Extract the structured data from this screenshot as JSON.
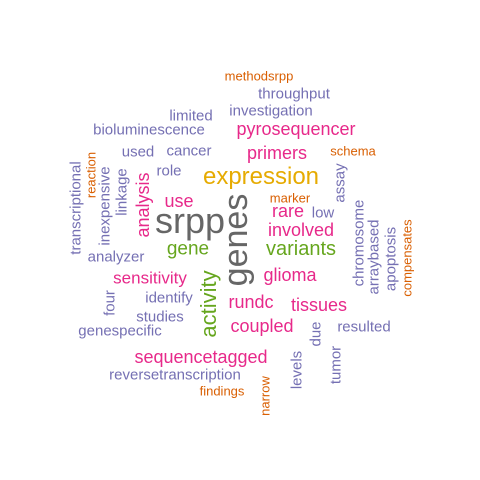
{
  "colors": {
    "slate": "#7570B3",
    "magenta": "#E7298A",
    "orange": "#D95F02",
    "gold": "#E6AB02",
    "green": "#66A61E",
    "gray": "#666666"
  },
  "words": [
    {
      "text": "genes",
      "color": "gray",
      "vertical": true
    },
    {
      "text": "srpp",
      "color": "gray",
      "vertical": false
    },
    {
      "text": "expression",
      "color": "gold",
      "vertical": false
    },
    {
      "text": "gene",
      "color": "green",
      "vertical": false
    },
    {
      "text": "variants",
      "color": "green",
      "vertical": false
    },
    {
      "text": "activity",
      "color": "green",
      "vertical": true
    },
    {
      "text": "analysis",
      "color": "magenta",
      "vertical": true
    },
    {
      "text": "pyrosequencer",
      "color": "magenta",
      "vertical": false
    },
    {
      "text": "primers",
      "color": "magenta",
      "vertical": false
    },
    {
      "text": "rare",
      "color": "magenta",
      "vertical": false
    },
    {
      "text": "involved",
      "color": "magenta",
      "vertical": false
    },
    {
      "text": "use",
      "color": "magenta",
      "vertical": false
    },
    {
      "text": "sensitivity",
      "color": "magenta",
      "vertical": false
    },
    {
      "text": "glioma",
      "color": "magenta",
      "vertical": false
    },
    {
      "text": "rundc",
      "color": "magenta",
      "vertical": false
    },
    {
      "text": "tissues",
      "color": "magenta",
      "vertical": false
    },
    {
      "text": "coupled",
      "color": "magenta",
      "vertical": false
    },
    {
      "text": "sequencetagged",
      "color": "magenta",
      "vertical": false
    },
    {
      "text": "methodsrpp",
      "color": "orange",
      "vertical": false
    },
    {
      "text": "schema",
      "color": "orange",
      "vertical": false
    },
    {
      "text": "marker",
      "color": "orange",
      "vertical": false
    },
    {
      "text": "reaction",
      "color": "orange",
      "vertical": true
    },
    {
      "text": "compensates",
      "color": "orange",
      "vertical": true
    },
    {
      "text": "findings",
      "color": "orange",
      "vertical": false
    },
    {
      "text": "narrow",
      "color": "orange",
      "vertical": true
    },
    {
      "text": "throughput",
      "color": "slate",
      "vertical": false
    },
    {
      "text": "limited",
      "color": "slate",
      "vertical": false
    },
    {
      "text": "investigation",
      "color": "slate",
      "vertical": false
    },
    {
      "text": "bioluminescence",
      "color": "slate",
      "vertical": false
    },
    {
      "text": "used",
      "color": "slate",
      "vertical": false
    },
    {
      "text": "cancer",
      "color": "slate",
      "vertical": false
    },
    {
      "text": "role",
      "color": "slate",
      "vertical": false
    },
    {
      "text": "transcriptional",
      "color": "slate",
      "vertical": true
    },
    {
      "text": "inexpensive",
      "color": "slate",
      "vertical": true
    },
    {
      "text": "linkage",
      "color": "slate",
      "vertical": true
    },
    {
      "text": "assay",
      "color": "slate",
      "vertical": true
    },
    {
      "text": "low",
      "color": "slate",
      "vertical": false
    },
    {
      "text": "chromosome",
      "color": "slate",
      "vertical": true
    },
    {
      "text": "arraybased",
      "color": "slate",
      "vertical": true
    },
    {
      "text": "apoptosis",
      "color": "slate",
      "vertical": true
    },
    {
      "text": "analyzer",
      "color": "slate",
      "vertical": false
    },
    {
      "text": "identify",
      "color": "slate",
      "vertical": false
    },
    {
      "text": "four",
      "color": "slate",
      "vertical": true
    },
    {
      "text": "studies",
      "color": "slate",
      "vertical": false
    },
    {
      "text": "genespecific",
      "color": "slate",
      "vertical": false
    },
    {
      "text": "due",
      "color": "slate",
      "vertical": true
    },
    {
      "text": "resulted",
      "color": "slate",
      "vertical": false
    },
    {
      "text": "tumor",
      "color": "slate",
      "vertical": true
    },
    {
      "text": "levels",
      "color": "slate",
      "vertical": true
    },
    {
      "text": "reversetranscription",
      "color": "slate",
      "vertical": false
    }
  ]
}
